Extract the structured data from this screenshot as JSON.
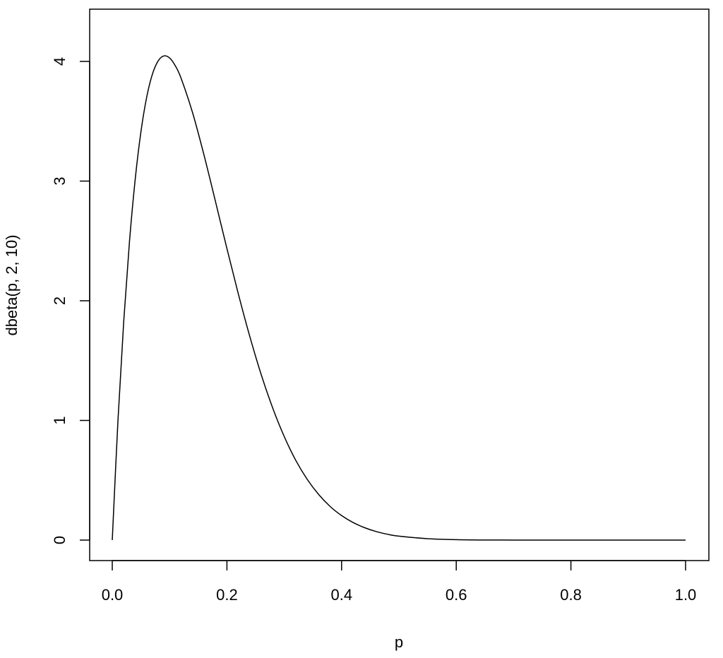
{
  "chart_data": {
    "type": "line",
    "title": "",
    "xlabel": "p",
    "ylabel": "dbeta(p, 2, 10)",
    "xlim": [
      0,
      1
    ],
    "ylim": [
      0,
      4.26
    ],
    "x_ticks": [
      0.0,
      0.2,
      0.4,
      0.6,
      0.8,
      1.0
    ],
    "x_tick_labels": [
      "0.0",
      "0.2",
      "0.4",
      "0.6",
      "0.8",
      "1.0"
    ],
    "y_ticks": [
      0,
      1,
      2,
      3,
      4
    ],
    "y_tick_labels": [
      "0",
      "1",
      "2",
      "3",
      "4"
    ],
    "grid": false,
    "legend": "none",
    "series": [
      {
        "x": [
          0.0,
          0.01,
          0.02,
          0.03,
          0.04,
          0.05,
          0.06,
          0.07,
          0.08,
          0.09,
          0.1,
          0.11,
          0.12,
          0.14,
          0.16,
          0.18,
          0.2,
          0.22,
          0.24,
          0.26,
          0.28,
          0.3,
          0.32,
          0.34,
          0.36,
          0.38,
          0.4,
          0.42,
          0.44,
          0.46,
          0.48,
          0.5,
          0.55,
          0.6,
          0.65,
          0.7,
          0.75,
          0.8,
          0.85,
          0.9,
          0.95,
          1.0
        ],
        "y": [
          0.0,
          1.004,
          1.828,
          2.492,
          3.014,
          3.412,
          3.7,
          3.893,
          4.004,
          4.046,
          4.029,
          3.963,
          3.86,
          3.573,
          3.218,
          2.83,
          2.436,
          2.055,
          1.7,
          1.38,
          1.102,
          0.865,
          0.667,
          0.508,
          0.381,
          0.281,
          0.205,
          0.147,
          0.104,
          0.072,
          0.049,
          0.033,
          0.012,
          0.004,
          0.001,
          0.0003,
          0.0001,
          0.0,
          0.0,
          0.0,
          0.0,
          0.0
        ]
      }
    ]
  }
}
